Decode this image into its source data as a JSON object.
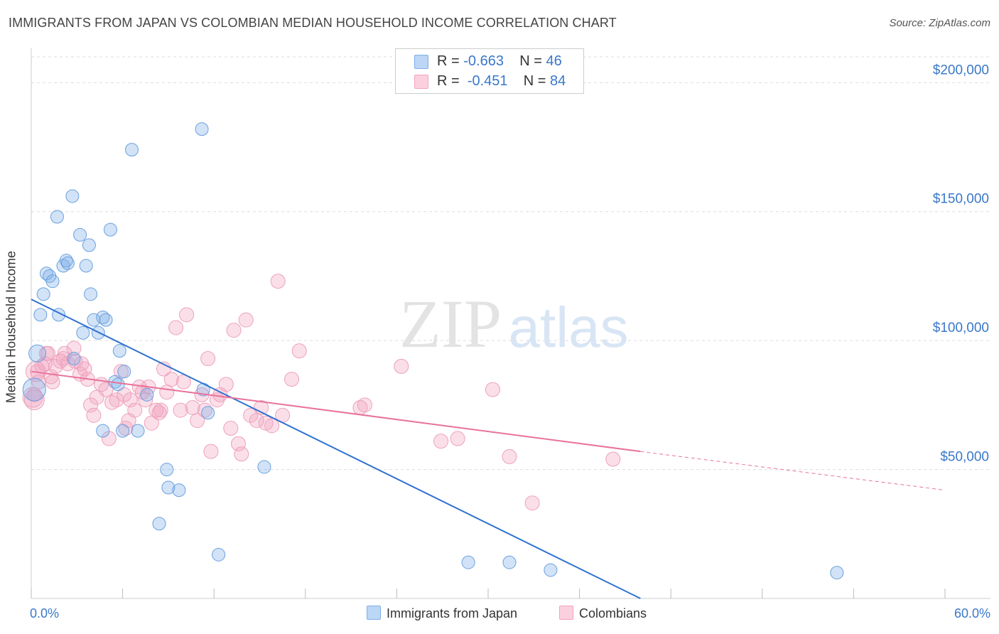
{
  "title": "IMMIGRANTS FROM JAPAN VS COLOMBIAN MEDIAN HOUSEHOLD INCOME CORRELATION CHART",
  "source": "Source: ZipAtlas.com",
  "watermark": {
    "zip": "ZIP",
    "atlas": "atlas"
  },
  "legend": {
    "japan": {
      "r_label": "R =",
      "r_value": "-0.663",
      "n_label": "N =",
      "n_value": "46"
    },
    "colombians": {
      "r_label": "R =",
      "r_value": "-0.451",
      "n_label": "N =",
      "n_value": "84"
    }
  },
  "colors": {
    "japan": "#7fb0e8",
    "japan_line": "#2f72d0",
    "colombians": "#f2a3bf",
    "colombians_line": "#e8729a",
    "axis_text": "#3a78c9"
  },
  "chart_data": {
    "type": "scatter",
    "title": "IMMIGRANTS FROM JAPAN VS COLOMBIAN MEDIAN HOUSEHOLD INCOME CORRELATION CHART",
    "xlabel": "",
    "ylabel": "Median Household Income",
    "xlim": [
      0,
      60
    ],
    "ylim": [
      0,
      210000
    ],
    "x_tick_labels": [
      "0.0%",
      "60.0%"
    ],
    "y_ticks": [
      50000,
      100000,
      150000,
      200000
    ],
    "y_tick_labels": [
      "$50,000",
      "$100,000",
      "$150,000",
      "$200,000"
    ],
    "grid": true,
    "legend_position": "top-center",
    "series": [
      {
        "name": "Immigrants from Japan",
        "r": -0.663,
        "n": 46,
        "trend": {
          "x0": 0,
          "y0": 116000,
          "x1": 40,
          "y1": 0
        },
        "points": [
          [
            0.2,
            81000
          ],
          [
            0.4,
            95000
          ],
          [
            0.6,
            110000
          ],
          [
            0.8,
            118000
          ],
          [
            1.0,
            126000
          ],
          [
            1.2,
            125000
          ],
          [
            1.4,
            123000
          ],
          [
            1.7,
            148000
          ],
          [
            1.8,
            110000
          ],
          [
            2.1,
            129000
          ],
          [
            2.3,
            131000
          ],
          [
            2.4,
            130000
          ],
          [
            2.8,
            93000
          ],
          [
            2.7,
            156000
          ],
          [
            3.2,
            141000
          ],
          [
            3.4,
            103000
          ],
          [
            3.6,
            129000
          ],
          [
            3.8,
            137000
          ],
          [
            3.9,
            118000
          ],
          [
            4.1,
            108000
          ],
          [
            4.4,
            103000
          ],
          [
            4.7,
            109000
          ],
          [
            4.9,
            108000
          ],
          [
            5.2,
            143000
          ],
          [
            5.5,
            84000
          ],
          [
            5.7,
            83000
          ],
          [
            5.8,
            96000
          ],
          [
            6.0,
            65000
          ],
          [
            6.1,
            88000
          ],
          [
            6.6,
            174000
          ],
          [
            7.0,
            65000
          ],
          [
            7.6,
            79000
          ],
          [
            8.4,
            29000
          ],
          [
            9.0,
            43000
          ],
          [
            9.7,
            42000
          ],
          [
            8.9,
            50000
          ],
          [
            11.2,
            182000
          ],
          [
            11.6,
            72000
          ],
          [
            11.3,
            81000
          ],
          [
            12.3,
            17000
          ],
          [
            15.3,
            51000
          ],
          [
            28.7,
            14000
          ],
          [
            31.4,
            14000
          ],
          [
            34.1,
            11000
          ],
          [
            52.9,
            10000
          ],
          [
            4.7,
            65000
          ]
        ]
      },
      {
        "name": "Colombians",
        "r": -0.451,
        "n": 84,
        "trend": {
          "x0": 0,
          "y0": 88000,
          "x1": 40,
          "y1": 57000,
          "dash_to_x": 60,
          "dash_to_y": 42000
        },
        "points": [
          [
            0.2,
            79000
          ],
          [
            0.4,
            88000
          ],
          [
            0.5,
            84000
          ],
          [
            0.7,
            90000
          ],
          [
            0.9,
            91000
          ],
          [
            1.0,
            95000
          ],
          [
            1.1,
            95000
          ],
          [
            1.3,
            86000
          ],
          [
            1.4,
            84000
          ],
          [
            1.6,
            90000
          ],
          [
            1.9,
            92000
          ],
          [
            2.1,
            93000
          ],
          [
            2.2,
            95000
          ],
          [
            2.4,
            91000
          ],
          [
            2.8,
            97000
          ],
          [
            2.9,
            92000
          ],
          [
            3.2,
            87000
          ],
          [
            3.3,
            91000
          ],
          [
            3.5,
            89000
          ],
          [
            3.7,
            85000
          ],
          [
            3.9,
            75000
          ],
          [
            4.1,
            71000
          ],
          [
            4.3,
            78000
          ],
          [
            4.6,
            83000
          ],
          [
            4.9,
            81000
          ],
          [
            5.1,
            62000
          ],
          [
            5.3,
            76000
          ],
          [
            5.6,
            77000
          ],
          [
            5.9,
            88000
          ],
          [
            6.1,
            79000
          ],
          [
            6.2,
            66000
          ],
          [
            6.4,
            69000
          ],
          [
            6.5,
            77000
          ],
          [
            6.8,
            73000
          ],
          [
            7.1,
            82000
          ],
          [
            7.3,
            80000
          ],
          [
            7.5,
            77000
          ],
          [
            7.7,
            82000
          ],
          [
            7.9,
            68000
          ],
          [
            8.2,
            73000
          ],
          [
            8.4,
            72000
          ],
          [
            8.5,
            73000
          ],
          [
            8.7,
            89000
          ],
          [
            8.9,
            80000
          ],
          [
            9.2,
            85000
          ],
          [
            9.5,
            105000
          ],
          [
            9.8,
            73000
          ],
          [
            10.0,
            84000
          ],
          [
            10.2,
            110000
          ],
          [
            10.6,
            74000
          ],
          [
            10.9,
            69000
          ],
          [
            11.2,
            79000
          ],
          [
            11.4,
            73000
          ],
          [
            11.6,
            93000
          ],
          [
            11.8,
            57000
          ],
          [
            12.2,
            77000
          ],
          [
            12.4,
            79000
          ],
          [
            12.8,
            83000
          ],
          [
            13.1,
            66000
          ],
          [
            13.3,
            104000
          ],
          [
            13.6,
            60000
          ],
          [
            13.8,
            56000
          ],
          [
            14.1,
            108000
          ],
          [
            14.4,
            71000
          ],
          [
            14.8,
            69000
          ],
          [
            15.1,
            74000
          ],
          [
            15.4,
            68000
          ],
          [
            15.8,
            67000
          ],
          [
            16.2,
            123000
          ],
          [
            16.5,
            71000
          ],
          [
            17.1,
            85000
          ],
          [
            17.6,
            96000
          ],
          [
            21.6,
            74000
          ],
          [
            21.9,
            75000
          ],
          [
            24.3,
            90000
          ],
          [
            26.9,
            61000
          ],
          [
            28.0,
            62000
          ],
          [
            30.3,
            81000
          ],
          [
            31.4,
            55000
          ],
          [
            32.9,
            37000
          ],
          [
            38.2,
            54000
          ],
          [
            0.1,
            78000
          ],
          [
            0.2,
            77000
          ],
          [
            0.3,
            88000
          ]
        ]
      }
    ]
  },
  "bottom_legend": {
    "japan": "Immigrants from Japan",
    "colombians": "Colombians"
  }
}
